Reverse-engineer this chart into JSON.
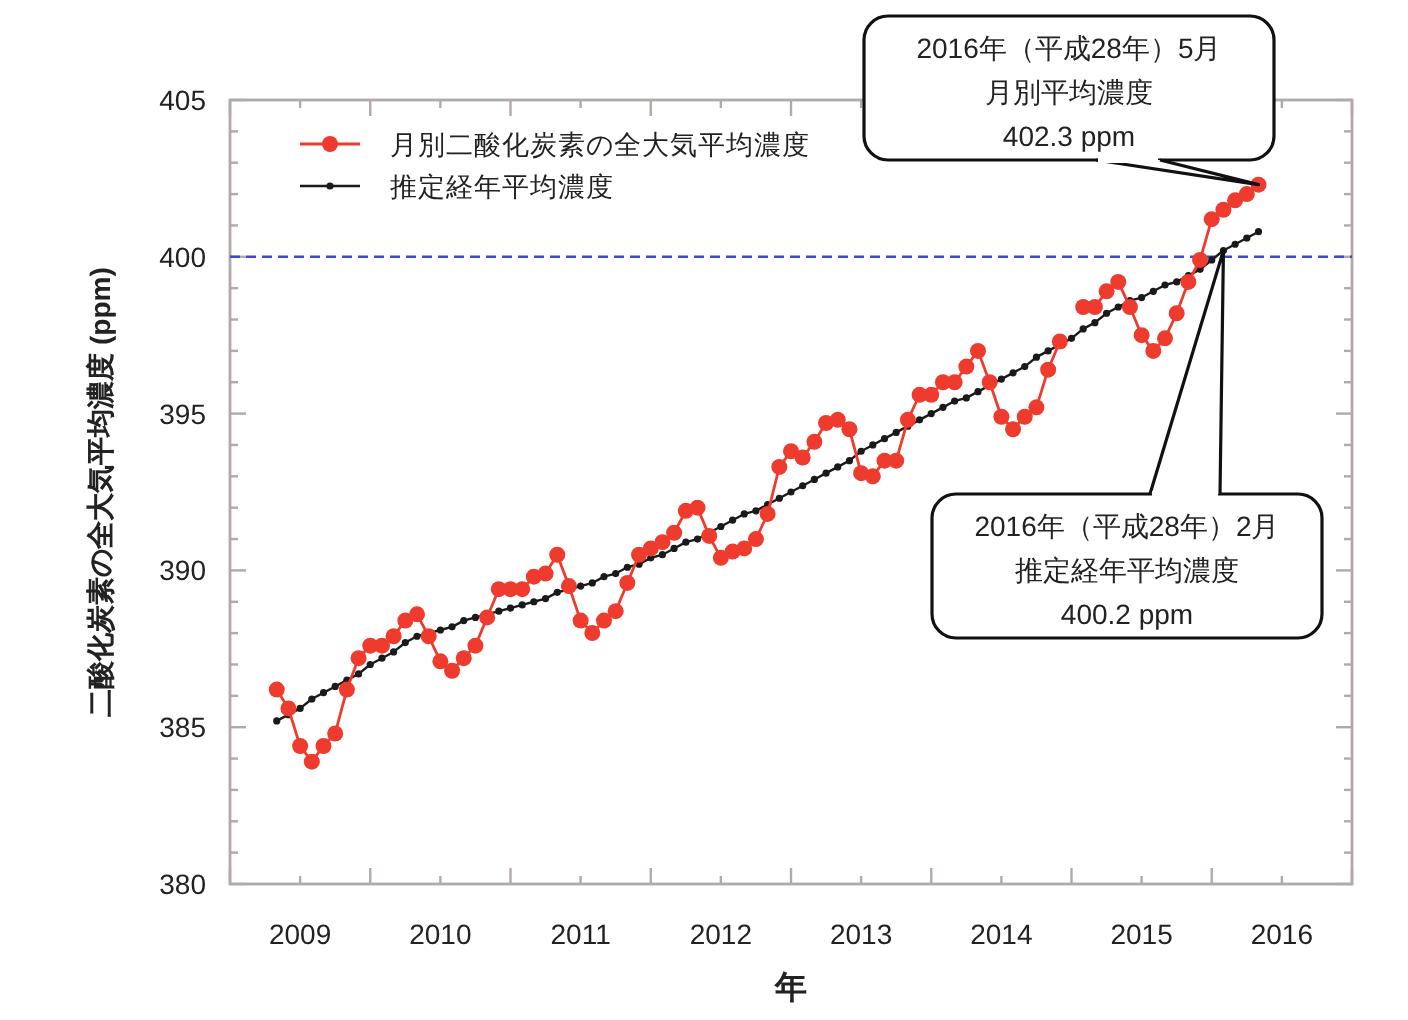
{
  "chart_data": {
    "type": "line",
    "xlabel": "年",
    "ylabel": "二酸化炭素の全大気平均濃度 (ppm)",
    "x": [
      "2009-05",
      "2009-06",
      "2009-07",
      "2009-08",
      "2009-09",
      "2009-10",
      "2009-11",
      "2009-12",
      "2010-01",
      "2010-02",
      "2010-03",
      "2010-04",
      "2010-05",
      "2010-06",
      "2010-07",
      "2010-08",
      "2010-09",
      "2010-10",
      "2010-11",
      "2010-12",
      "2011-01",
      "2011-02",
      "2011-03",
      "2011-04",
      "2011-05",
      "2011-06",
      "2011-07",
      "2011-08",
      "2011-09",
      "2011-10",
      "2011-11",
      "2011-12",
      "2012-01",
      "2012-02",
      "2012-03",
      "2012-04",
      "2012-05",
      "2012-06",
      "2012-07",
      "2012-08",
      "2012-09",
      "2012-10",
      "2012-11",
      "2012-12",
      "2013-01",
      "2013-02",
      "2013-03",
      "2013-04",
      "2013-05",
      "2013-06",
      "2013-07",
      "2013-08",
      "2013-09",
      "2013-10",
      "2013-11",
      "2013-12",
      "2014-01",
      "2014-02",
      "2014-03",
      "2014-04",
      "2014-05",
      "2014-06",
      "2014-07",
      "2014-08",
      "2014-09",
      "2014-10",
      "2014-11",
      "2014-12",
      "2015-01",
      "2015-02",
      "2015-03",
      "2015-04",
      "2015-05",
      "2015-06",
      "2015-07",
      "2015-08",
      "2015-09",
      "2015-10",
      "2015-11",
      "2015-12",
      "2016-01",
      "2016-02",
      "2016-03",
      "2016-04",
      "2016-05"
    ],
    "series": [
      {
        "name": "月別二酸化炭素の全大気平均濃度",
        "color": "#ee3b2e",
        "marker": "circle",
        "values": [
          386.2,
          385.6,
          384.4,
          383.9,
          384.4,
          384.8,
          386.2,
          387.2,
          387.6,
          387.6,
          387.9,
          388.4,
          388.6,
          387.9,
          387.1,
          386.8,
          387.2,
          387.6,
          388.5,
          389.4,
          389.4,
          389.4,
          389.8,
          389.9,
          390.5,
          389.5,
          388.4,
          388.0,
          388.4,
          388.7,
          389.6,
          390.5,
          390.7,
          390.9,
          391.2,
          391.9,
          392.0,
          391.1,
          390.4,
          390.6,
          390.7,
          391.0,
          391.8,
          393.3,
          393.8,
          393.6,
          394.1,
          394.7,
          394.8,
          394.5,
          393.1,
          393.0,
          393.5,
          393.5,
          394.8,
          395.6,
          395.6,
          396.0,
          396.0,
          396.5,
          397.0,
          396.0,
          394.9,
          394.5,
          394.9,
          395.2,
          396.4,
          397.3,
          null,
          398.4,
          398.4,
          398.9,
          399.2,
          398.4,
          397.5,
          397.0,
          397.4,
          398.2,
          399.2,
          399.9,
          401.2,
          401.5,
          401.8,
          402.0,
          402.3
        ]
      },
      {
        "name": "推定経年平均濃度",
        "color": "#1a1a1a",
        "marker": "circle",
        "values": [
          385.2,
          385.4,
          385.6,
          385.9,
          386.1,
          386.3,
          386.5,
          386.7,
          387.0,
          387.2,
          387.4,
          387.7,
          387.9,
          388.0,
          388.1,
          388.2,
          388.4,
          388.5,
          388.6,
          388.7,
          388.8,
          388.9,
          389.0,
          389.1,
          389.3,
          389.4,
          389.5,
          389.6,
          389.8,
          389.9,
          390.1,
          390.2,
          390.4,
          390.5,
          390.7,
          390.9,
          391.0,
          391.2,
          391.4,
          391.6,
          391.8,
          391.9,
          392.1,
          392.3,
          392.5,
          392.7,
          392.9,
          393.1,
          393.3,
          393.5,
          393.8,
          394.0,
          394.2,
          394.4,
          394.6,
          394.8,
          395.0,
          395.2,
          395.4,
          395.5,
          395.7,
          395.9,
          396.1,
          396.3,
          396.5,
          396.8,
          397.0,
          397.2,
          397.4,
          397.7,
          397.9,
          398.2,
          398.4,
          398.6,
          398.7,
          398.9,
          399.1,
          399.2,
          399.4,
          399.6,
          399.9,
          400.2,
          400.4,
          400.6,
          400.8
        ]
      }
    ],
    "xlim": [
      "2009",
      "2017"
    ],
    "xticks": [
      {
        "value": "2009",
        "label": null
      },
      {
        "value": "2009-07",
        "label": "2009"
      },
      {
        "value": "2010",
        "label": null
      },
      {
        "value": "2010-07",
        "label": "2010"
      },
      {
        "value": "2011",
        "label": null
      },
      {
        "value": "2011-07",
        "label": "2011"
      },
      {
        "value": "2012",
        "label": null
      },
      {
        "value": "2012-07",
        "label": "2012"
      },
      {
        "value": "2013",
        "label": null
      },
      {
        "value": "2013-07",
        "label": "2013"
      },
      {
        "value": "2014",
        "label": null
      },
      {
        "value": "2014-07",
        "label": "2014"
      },
      {
        "value": "2015",
        "label": null
      },
      {
        "value": "2015-07",
        "label": "2015"
      },
      {
        "value": "2016",
        "label": null
      },
      {
        "value": "2016-07",
        "label": "2016"
      },
      {
        "value": "2017",
        "label": null
      }
    ],
    "ylim": [
      380,
      405
    ],
    "yticks": [
      380,
      {
        "value": 381,
        "label": null
      },
      {
        "value": 382,
        "label": null
      },
      {
        "value": 383,
        "label": null
      },
      {
        "value": 384,
        "label": null
      },
      385,
      {
        "value": 386,
        "label": null
      },
      {
        "value": 387,
        "label": null
      },
      {
        "value": 388,
        "label": null
      },
      {
        "value": 389,
        "label": null
      },
      390,
      {
        "value": 391,
        "label": null
      },
      {
        "value": 392,
        "label": null
      },
      {
        "value": 393,
        "label": null
      },
      {
        "value": 394,
        "label": null
      },
      395,
      {
        "value": 396,
        "label": null
      },
      {
        "value": 397,
        "label": null
      },
      {
        "value": 398,
        "label": null
      },
      {
        "value": 399,
        "label": null
      },
      400,
      {
        "value": 401,
        "label": null
      },
      {
        "value": 402,
        "label": null
      },
      {
        "value": 403,
        "label": null
      },
      {
        "value": 404,
        "label": null
      },
      405
    ],
    "ref_lines": [
      {
        "axis": "y",
        "value": 400,
        "color": "#3b4bc8",
        "line_style": "dashed"
      }
    ],
    "annotations": [
      "2016年（平成28年）5月",
      "月別平均濃度",
      {
        "text": "402.3 ppm",
        "x": "2016-05",
        "y": 402.3
      },
      {
        "text": "2016年（平成28年）2月",
        "x": "2016-02",
        "y": 400.2
      },
      "推定経年平均濃度",
      "400.2 ppm"
    ],
    "legend": "top left",
    "grid": false
  }
}
